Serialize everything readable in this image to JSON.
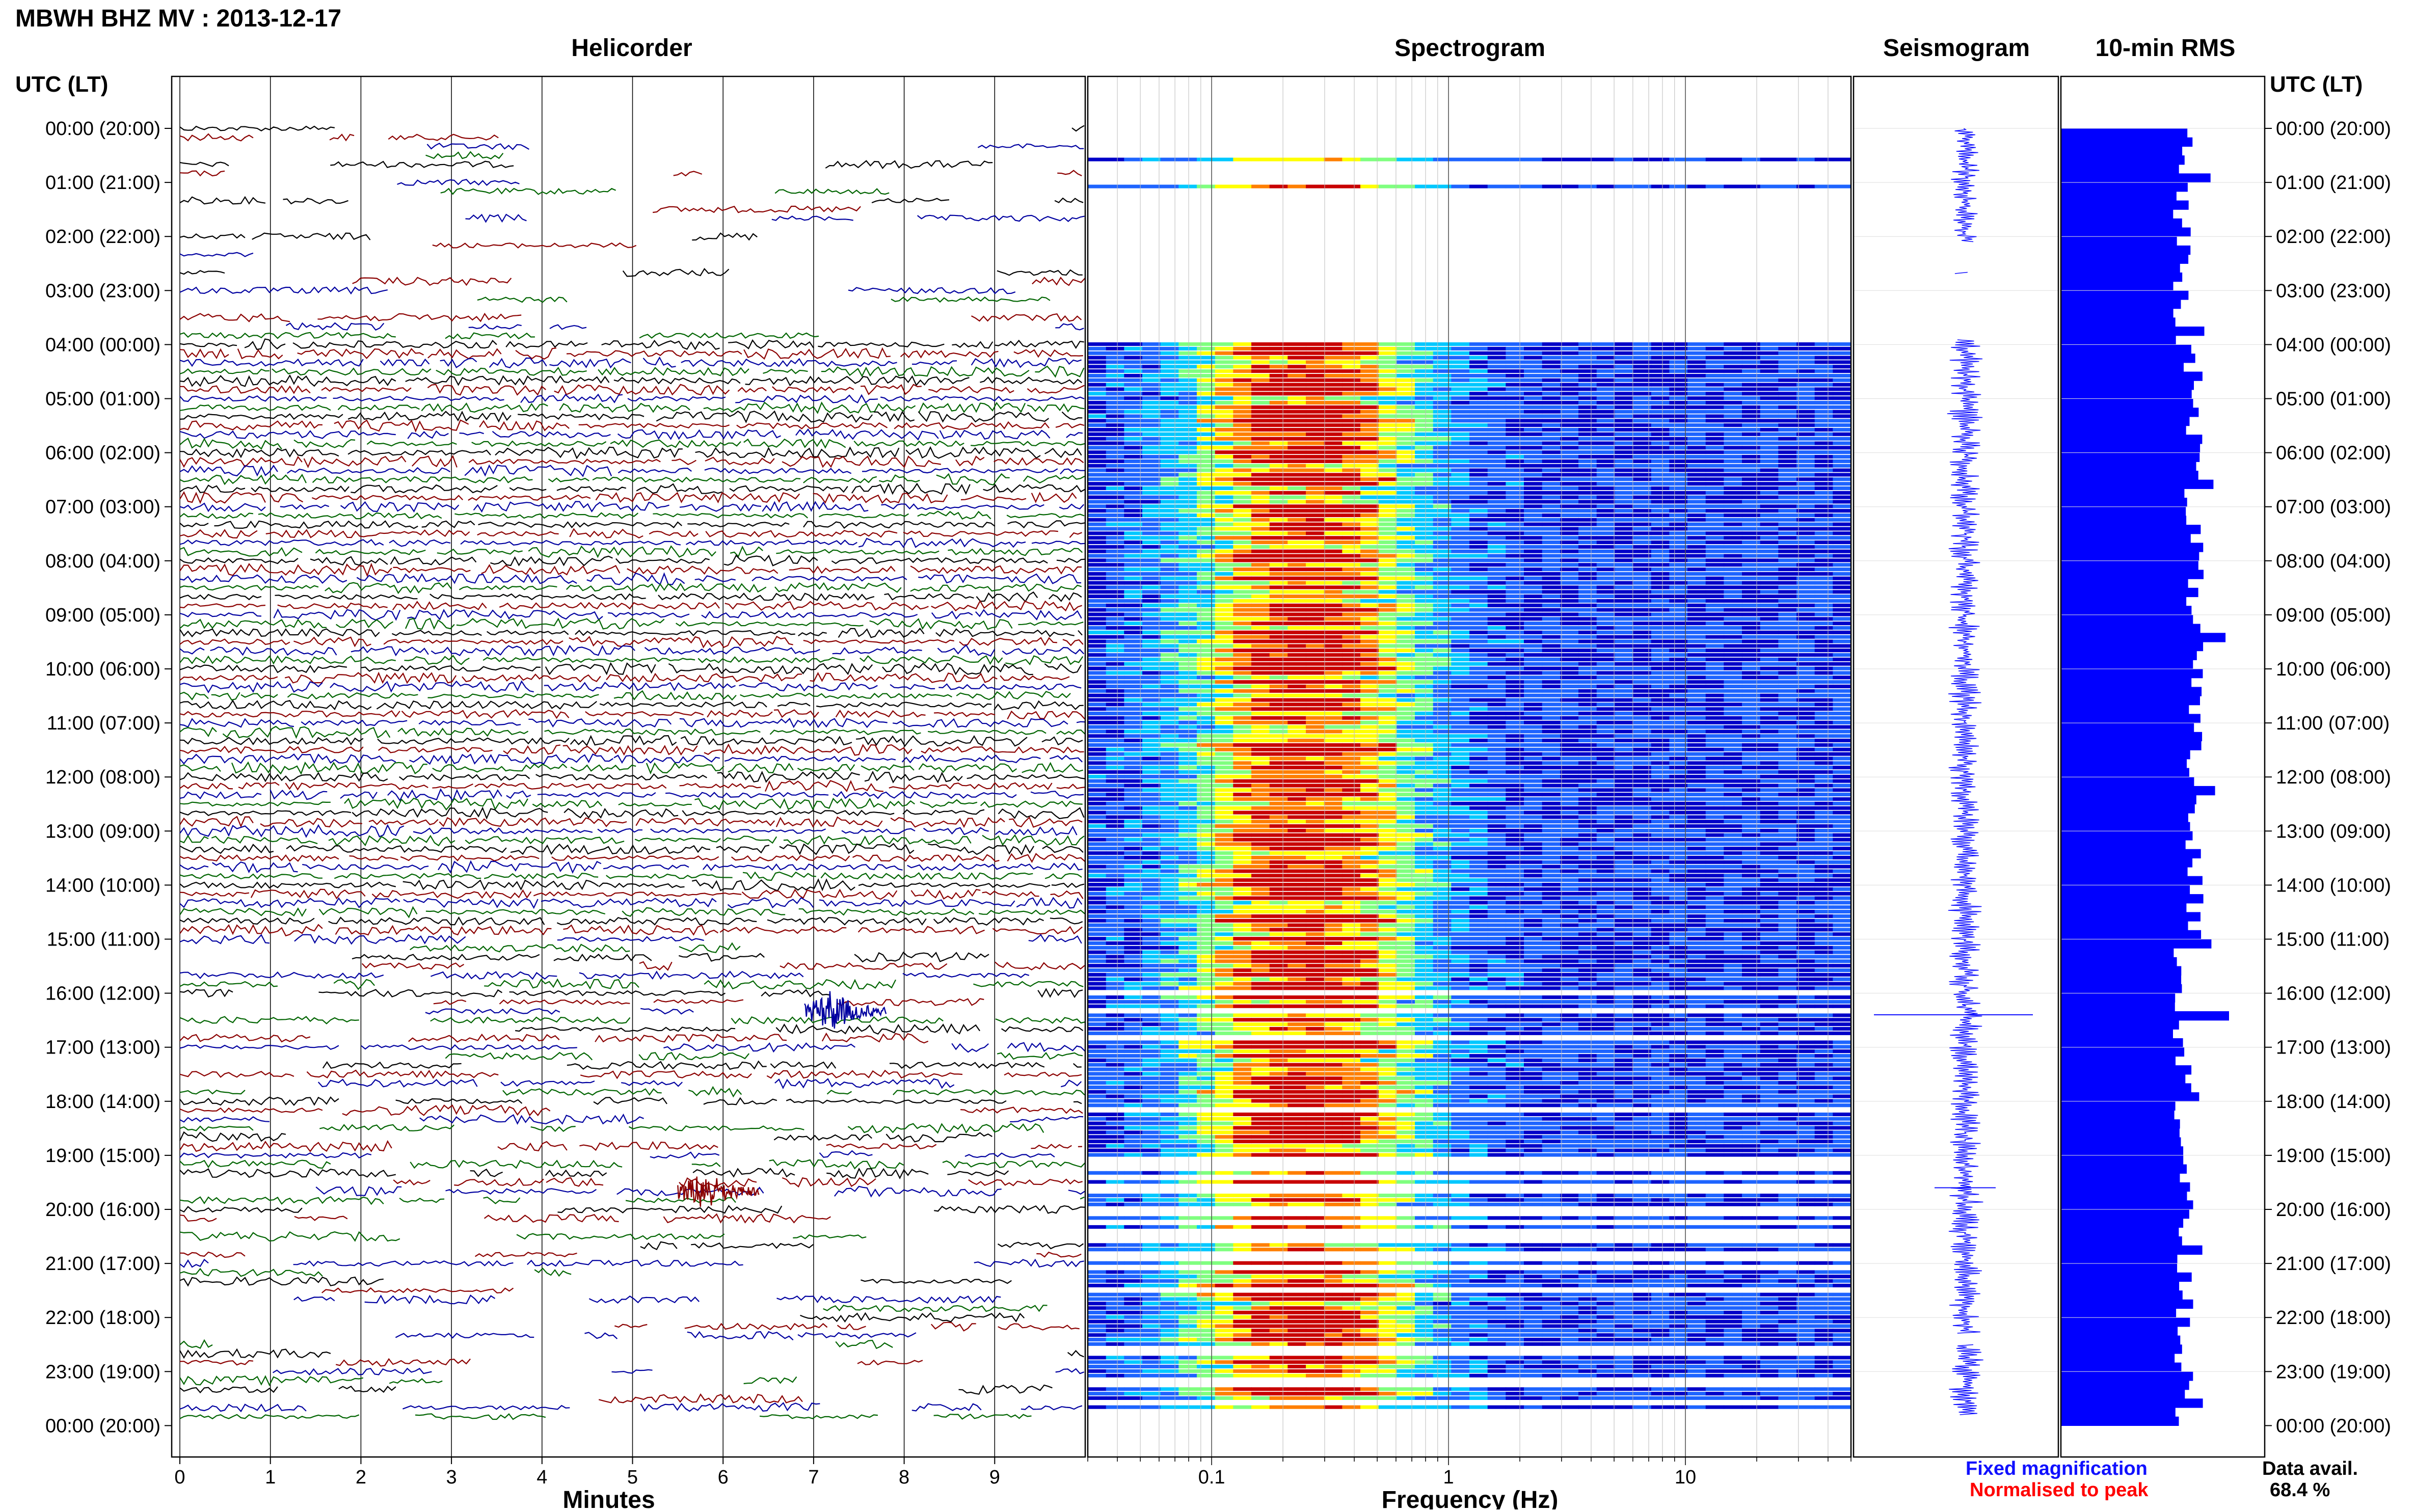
{
  "header": {
    "title": "MBWH BHZ MV : 2013-12-17",
    "left_axis_label": "UTC (LT)",
    "right_axis_label": "UTC (LT)"
  },
  "panels": {
    "helicorder": "Helicorder",
    "spectrogram": "Spectrogram",
    "seismogram": "Seismogram",
    "rms": "10-min RMS"
  },
  "time_labels": [
    "00:00 (20:00)",
    "01:00 (21:00)",
    "02:00 (22:00)",
    "03:00 (23:00)",
    "04:00 (00:00)",
    "05:00 (01:00)",
    "06:00 (02:00)",
    "07:00 (03:00)",
    "08:00 (04:00)",
    "09:00 (05:00)",
    "10:00 (06:00)",
    "11:00 (07:00)",
    "12:00 (08:00)",
    "13:00 (09:00)",
    "14:00 (10:00)",
    "15:00 (11:00)",
    "16:00 (12:00)",
    "17:00 (13:00)",
    "18:00 (14:00)",
    "19:00 (15:00)",
    "20:00 (16:00)",
    "21:00 (17:00)",
    "22:00 (18:00)",
    "23:00 (19:00)",
    "00:00 (20:00)"
  ],
  "legend": {
    "fixed": "Fixed magnification",
    "normalised": "Normalised to peak",
    "fixed_color": "#1010ff",
    "normalised_color": "#ff0000"
  },
  "availability": {
    "label": "Data avail.",
    "value": "68.4 %"
  },
  "chart_data": [
    {
      "type": "line",
      "panel": "helicorder",
      "xlabel": "Minutes",
      "x_ticks": [
        "0",
        "1",
        "2",
        "3",
        "4",
        "5",
        "6",
        "7",
        "8",
        "9"
      ],
      "xlim": [
        0,
        10
      ],
      "trace_colors": [
        "#000000",
        "#8b0000",
        "#0000a0",
        "#006400"
      ],
      "events": [
        {
          "time": "16:20",
          "minute": 7.2
        },
        {
          "time": "19:40",
          "minute": 5.8
        }
      ]
    },
    {
      "type": "heatmap",
      "panel": "spectrogram",
      "xlabel": "Frequency (Hz)",
      "x_scale": "log",
      "x_ticks": [
        "0.1",
        "1",
        "10"
      ],
      "xlim": [
        0.03,
        50
      ],
      "colormap": [
        "#0000c8",
        "#1e64ff",
        "#00c8ff",
        "#7fff7f",
        "#ffff00",
        "#ff7f00",
        "#c80000"
      ]
    },
    {
      "type": "line",
      "panel": "seismogram",
      "trace_color": "#1010ff"
    },
    {
      "type": "bar",
      "panel": "rms",
      "bar_color": "#0000ff",
      "orientation": "horizontal",
      "interval_minutes": 10
    }
  ]
}
